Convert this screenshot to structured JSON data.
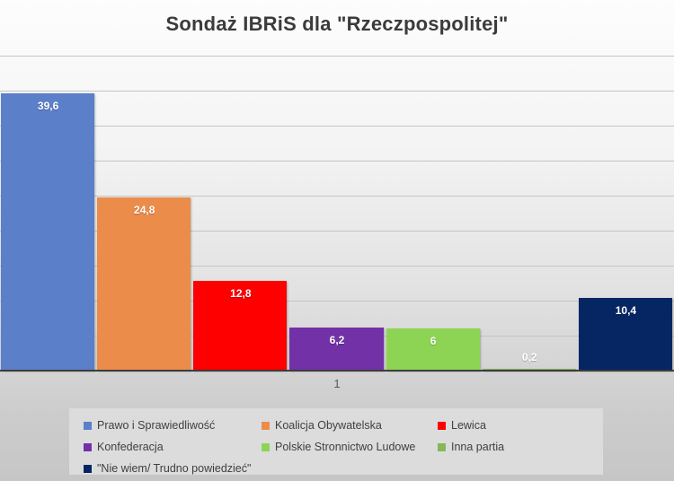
{
  "chart_data": {
    "type": "bar",
    "title": "Sondaż IBRiS dla \"Rzeczpospolitej\"",
    "categories": [
      "1"
    ],
    "series": [
      {
        "name": "Prawo i Sprawiedliwość",
        "value": 39.6,
        "label": "39,6",
        "color": "#5b7fc9"
      },
      {
        "name": "Koalicja Obywatelska",
        "value": 24.8,
        "label": "24,8",
        "color": "#ec8c4b"
      },
      {
        "name": "Lewica",
        "value": 12.8,
        "label": "12,8",
        "color": "#fe0000"
      },
      {
        "name": "Konfederacja",
        "value": 6.2,
        "label": "6,2",
        "color": "#7331a8"
      },
      {
        "name": "Polskie Stronnictwo Ludowe",
        "value": 6,
        "label": "6",
        "color": "#8dd455"
      },
      {
        "name": "Inna partia",
        "value": 0.2,
        "label": "0,2",
        "color": "#84b85a"
      },
      {
        "name": "\"Nie wiem/ Trudno powiedzieć\"",
        "value": 10.4,
        "label": "10,4",
        "color": "#062663"
      }
    ],
    "ylim": [
      0,
      45
    ],
    "gridline_step": 5,
    "grid": true,
    "legend_position": "bottom",
    "value_label_color": "#ffffff"
  }
}
